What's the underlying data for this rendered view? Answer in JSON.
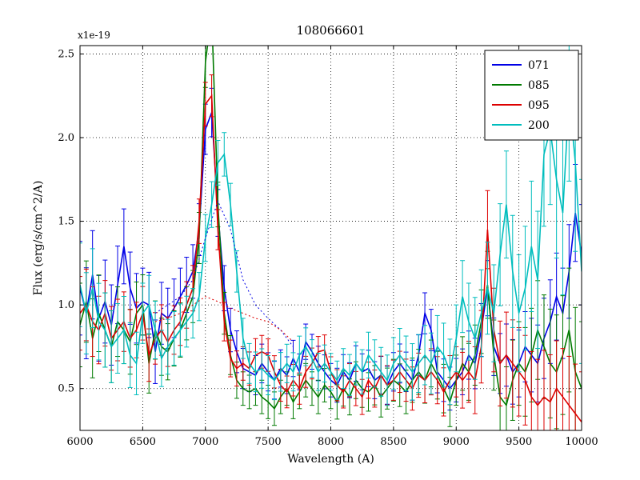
{
  "figure": {
    "title": "108066601",
    "offset_label": "x1e-19",
    "xlabel": "Wavelength (A)",
    "ylabel": "Flux (erg/s/cm^2/A)"
  },
  "chart_data": {
    "type": "line",
    "title": "108066601",
    "xlabel": "Wavelength (A)",
    "ylabel": "Flux (erg/s/cm^2/A)",
    "y_offset_label": "x1e-19",
    "scale_note": "flux values are in units of 1e-19 erg/s/cm^2/A",
    "xlim": [
      6000,
      10000
    ],
    "ylim": [
      0.25,
      2.55
    ],
    "xticks": [
      6000,
      6500,
      7000,
      7500,
      8000,
      8500,
      9000,
      9500,
      10000
    ],
    "yticks": [
      0.5,
      1.0,
      1.5,
      2.0,
      2.5
    ],
    "ytick_labels": [
      "0.5",
      "1.0",
      "1.5",
      "2.0",
      "2.5"
    ],
    "grid": true,
    "legend_position": "upper right",
    "x_start": 6000,
    "x_step": 50,
    "series": [
      {
        "name": "071",
        "color": "#0000e6",
        "values": [
          1.1,
          0.95,
          1.18,
          0.92,
          1.02,
          0.88,
          1.12,
          1.35,
          1.1,
          0.98,
          1.02,
          1.0,
          0.72,
          0.95,
          0.92,
          0.98,
          1.05,
          1.12,
          1.2,
          1.45,
          2.05,
          2.15,
          1.55,
          1.1,
          0.85,
          0.72,
          0.62,
          0.6,
          0.58,
          0.65,
          0.6,
          0.55,
          0.62,
          0.58,
          0.68,
          0.6,
          0.78,
          0.72,
          0.65,
          0.6,
          0.55,
          0.52,
          0.6,
          0.55,
          0.65,
          0.6,
          0.62,
          0.55,
          0.58,
          0.52,
          0.6,
          0.65,
          0.6,
          0.55,
          0.7,
          0.95,
          0.85,
          0.6,
          0.55,
          0.5,
          0.55,
          0.6,
          0.7,
          0.65,
          0.85,
          1.1,
          0.75,
          0.65,
          0.7,
          0.6,
          0.65,
          0.75,
          0.7,
          0.65,
          0.8,
          0.9,
          1.05,
          0.95,
          1.2,
          1.55,
          1.3
        ],
        "error_profile": [
          [
            6000,
            0.28
          ],
          [
            6500,
            0.2
          ],
          [
            7000,
            0.15
          ],
          [
            7300,
            0.12
          ],
          [
            8000,
            0.1
          ],
          [
            9000,
            0.13
          ],
          [
            9500,
            0.2
          ],
          [
            10000,
            0.3
          ]
        ]
      },
      {
        "name": "085",
        "color": "#007a00",
        "values": [
          0.88,
          1.02,
          0.8,
          0.95,
          0.85,
          0.75,
          0.9,
          0.85,
          0.78,
          0.95,
          1.0,
          0.65,
          0.85,
          0.75,
          0.72,
          0.8,
          0.85,
          0.95,
          1.05,
          1.4,
          2.45,
          2.75,
          1.6,
          0.95,
          0.7,
          0.55,
          0.5,
          0.48,
          0.5,
          0.45,
          0.42,
          0.38,
          0.45,
          0.5,
          0.42,
          0.48,
          0.55,
          0.5,
          0.45,
          0.52,
          0.48,
          0.42,
          0.5,
          0.45,
          0.55,
          0.5,
          0.48,
          0.52,
          0.45,
          0.5,
          0.55,
          0.52,
          0.48,
          0.55,
          0.6,
          0.55,
          0.65,
          0.58,
          0.5,
          0.42,
          0.55,
          0.65,
          0.6,
          0.7,
          0.9,
          1.12,
          0.7,
          0.45,
          0.4,
          0.55,
          0.65,
          0.6,
          0.7,
          0.85,
          0.75,
          0.65,
          0.6,
          0.7,
          0.85,
          0.6,
          0.5
        ],
        "error_profile": [
          [
            6000,
            0.25
          ],
          [
            6500,
            0.18
          ],
          [
            7000,
            0.15
          ],
          [
            7300,
            0.1
          ],
          [
            8000,
            0.1
          ],
          [
            9000,
            0.15
          ],
          [
            9500,
            0.25
          ],
          [
            10000,
            0.4
          ]
        ]
      },
      {
        "name": "095",
        "color": "#dd0000",
        "values": [
          0.95,
          1.0,
          0.9,
          0.85,
          0.95,
          0.8,
          0.85,
          0.9,
          0.8,
          0.85,
          0.95,
          0.7,
          0.8,
          0.85,
          0.78,
          0.85,
          0.9,
          1.0,
          1.1,
          1.5,
          2.2,
          2.25,
          1.45,
          0.9,
          0.68,
          0.62,
          0.65,
          0.62,
          0.7,
          0.72,
          0.7,
          0.6,
          0.52,
          0.48,
          0.55,
          0.5,
          0.6,
          0.65,
          0.72,
          0.73,
          0.6,
          0.52,
          0.48,
          0.55,
          0.5,
          0.45,
          0.55,
          0.5,
          0.58,
          0.52,
          0.55,
          0.6,
          0.55,
          0.5,
          0.58,
          0.55,
          0.6,
          0.55,
          0.48,
          0.55,
          0.6,
          0.55,
          0.6,
          0.55,
          0.75,
          1.45,
          0.85,
          0.65,
          0.7,
          0.65,
          0.6,
          0.55,
          0.45,
          0.4,
          0.45,
          0.42,
          0.5,
          0.45,
          0.4,
          0.35,
          0.3
        ],
        "error_profile": [
          [
            6000,
            0.22
          ],
          [
            6500,
            0.16
          ],
          [
            7000,
            0.13
          ],
          [
            7300,
            0.1
          ],
          [
            8000,
            0.09
          ],
          [
            9000,
            0.15
          ],
          [
            9300,
            0.25
          ],
          [
            10000,
            0.3
          ]
        ]
      },
      {
        "name": "200",
        "color": "#00bdbd",
        "values": [
          1.12,
          0.95,
          1.1,
          0.9,
          0.85,
          0.75,
          0.8,
          0.85,
          0.7,
          0.65,
          0.95,
          1.0,
          0.85,
          0.68,
          0.75,
          0.8,
          0.85,
          0.9,
          0.95,
          1.05,
          1.4,
          1.6,
          1.85,
          1.9,
          1.6,
          1.2,
          0.8,
          0.65,
          0.6,
          0.62,
          0.58,
          0.55,
          0.6,
          0.65,
          0.6,
          0.7,
          0.75,
          0.68,
          0.6,
          0.65,
          0.6,
          0.55,
          0.62,
          0.58,
          0.65,
          0.6,
          0.7,
          0.65,
          0.6,
          0.55,
          0.65,
          0.7,
          0.65,
          0.6,
          0.65,
          0.7,
          0.65,
          0.75,
          0.7,
          0.6,
          0.8,
          1.05,
          0.9,
          0.8,
          0.95,
          1.1,
          0.95,
          1.3,
          1.6,
          1.2,
          0.95,
          1.1,
          1.35,
          1.15,
          1.9,
          2.05,
          1.75,
          1.55,
          2.25,
          1.85,
          1.2
        ],
        "error_profile": [
          [
            6000,
            0.25
          ],
          [
            6500,
            0.18
          ],
          [
            7000,
            0.14
          ],
          [
            7300,
            0.12
          ],
          [
            8000,
            0.11
          ],
          [
            9000,
            0.2
          ],
          [
            9500,
            0.35
          ],
          [
            10000,
            0.55
          ]
        ]
      }
    ],
    "aux_dotted": [
      {
        "name": "071-dotted",
        "color": "#0000e6",
        "x": [
          6600,
          6700,
          6800,
          6900,
          7000,
          7100,
          7200,
          7300,
          7400,
          7500,
          7600,
          7700
        ],
        "values": [
          0.95,
          1.0,
          1.05,
          1.15,
          1.4,
          1.62,
          1.45,
          1.15,
          1.0,
          0.92,
          0.85,
          0.75
        ]
      },
      {
        "name": "095-dotted",
        "color": "#dd0000",
        "x": [
          6600,
          6700,
          6800,
          6900,
          7000,
          7100,
          7200,
          7300,
          7400,
          7500,
          7600,
          7700
        ],
        "values": [
          0.9,
          0.92,
          0.95,
          1.0,
          1.05,
          1.02,
          0.98,
          0.95,
          0.92,
          0.9,
          0.85,
          0.78
        ]
      }
    ],
    "legend": {
      "entries": [
        {
          "label": "071",
          "color": "#0000e6"
        },
        {
          "label": "085",
          "color": "#007a00"
        },
        {
          "label": "095",
          "color": "#dd0000"
        },
        {
          "label": "200",
          "color": "#00bdbd"
        }
      ]
    }
  }
}
